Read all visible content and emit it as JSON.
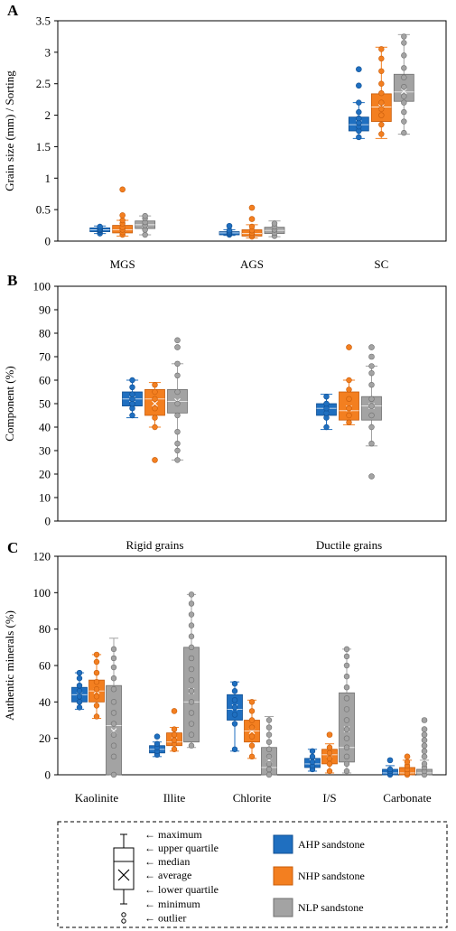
{
  "colors": {
    "ahp": "#1f6fc0",
    "nhp": "#f37f20",
    "nlp": "#a3a3a3",
    "axis": "#000000"
  },
  "legend": {
    "box_labels": [
      "maximum",
      "upper quartile",
      "median",
      "average",
      "lower quartile",
      "minimum",
      "outlier"
    ],
    "series": [
      "AHP sandstone",
      "NHP sandstone",
      "NLP sandstone"
    ]
  },
  "chart_data": [
    {
      "panel": "A",
      "type": "box",
      "ylabel": "Grain size (mm) / Sorting",
      "ylim": [
        0,
        3.5
      ],
      "yticks": [
        "0",
        "0.5",
        "1",
        "1.5",
        "2",
        "2.5",
        "3",
        "3.5"
      ],
      "categories": [
        "MGS",
        "AGS",
        "SC"
      ],
      "series": [
        {
          "name": "AHP sandstone",
          "boxes": [
            {
              "min": 0.12,
              "q1": 0.15,
              "median": 0.18,
              "mean": 0.18,
              "q3": 0.21,
              "max": 0.24,
              "points": [
                0.12,
                0.15,
                0.17,
                0.18,
                0.19,
                0.21,
                0.23
              ],
              "outliers": []
            },
            {
              "min": 0.09,
              "q1": 0.1,
              "median": 0.13,
              "mean": 0.13,
              "q3": 0.15,
              "max": 0.18,
              "points": [
                0.1,
                0.12,
                0.13,
                0.15,
                0.17
              ],
              "outliers": [
                0.24
              ]
            },
            {
              "min": 1.63,
              "q1": 1.75,
              "median": 1.85,
              "mean": 1.87,
              "q3": 1.97,
              "max": 2.2,
              "points": [
                1.65,
                1.75,
                1.82,
                1.88,
                1.95,
                2.05,
                2.2
              ],
              "outliers": [
                2.47,
                2.73
              ]
            }
          ]
        },
        {
          "name": "NHP sandstone",
          "boxes": [
            {
              "min": 0.08,
              "q1": 0.13,
              "median": 0.18,
              "mean": 0.19,
              "q3": 0.25,
              "max": 0.33,
              "points": [
                0.1,
                0.14,
                0.18,
                0.22,
                0.28,
                0.33
              ],
              "outliers": [
                0.41,
                0.82
              ]
            },
            {
              "min": 0.05,
              "q1": 0.08,
              "median": 0.12,
              "mean": 0.13,
              "q3": 0.18,
              "max": 0.26,
              "points": [
                0.07,
                0.1,
                0.13,
                0.17,
                0.23
              ],
              "outliers": [
                0.35,
                0.53
              ]
            },
            {
              "min": 1.63,
              "q1": 1.9,
              "median": 2.13,
              "mean": 2.13,
              "q3": 2.34,
              "max": 3.08,
              "points": [
                1.7,
                1.85,
                2.0,
                2.1,
                2.2,
                2.35,
                2.5,
                2.7,
                2.9,
                3.05
              ],
              "outliers": []
            }
          ]
        },
        {
          "name": "NLP sandstone",
          "boxes": [
            {
              "min": 0.1,
              "q1": 0.2,
              "median": 0.26,
              "mean": 0.26,
              "q3": 0.32,
              "max": 0.4,
              "points": [
                0.1,
                0.18,
                0.25,
                0.3,
                0.36,
                0.4
              ],
              "outliers": []
            },
            {
              "min": 0.07,
              "q1": 0.12,
              "median": 0.17,
              "mean": 0.17,
              "q3": 0.22,
              "max": 0.32,
              "points": [
                0.08,
                0.13,
                0.18,
                0.23,
                0.28
              ],
              "outliers": []
            },
            {
              "min": 1.7,
              "q1": 2.22,
              "median": 2.37,
              "mean": 2.38,
              "q3": 2.65,
              "max": 3.28,
              "points": [
                1.72,
                1.9,
                2.05,
                2.2,
                2.3,
                2.45,
                2.6,
                2.75,
                2.95,
                3.15,
                3.25
              ],
              "outliers": []
            }
          ]
        }
      ]
    },
    {
      "panel": "B",
      "type": "box",
      "ylabel": "Component (%)",
      "ylim": [
        0,
        100
      ],
      "yticks": [
        "0",
        "10",
        "20",
        "30",
        "40",
        "50",
        "60",
        "70",
        "80",
        "90",
        "100"
      ],
      "categories": [
        "Rigid grains",
        "Ductile grains"
      ],
      "series": [
        {
          "name": "AHP sandstone",
          "boxes": [
            {
              "min": 44,
              "q1": 49,
              "median": 52,
              "mean": 52,
              "q3": 55,
              "max": 60,
              "points": [
                45,
                48,
                50,
                52,
                54,
                57,
                60
              ],
              "outliers": []
            },
            {
              "min": 39,
              "q1": 45,
              "median": 48,
              "mean": 47,
              "q3": 50,
              "max": 54,
              "points": [
                40,
                44,
                46,
                48,
                50,
                53
              ],
              "outliers": []
            }
          ]
        },
        {
          "name": "NHP sandstone",
          "boxes": [
            {
              "min": 40,
              "q1": 45,
              "median": 52,
              "mean": 50,
              "q3": 56,
              "max": 59,
              "points": [
                40,
                44,
                48,
                52,
                55,
                58
              ],
              "outliers": [
                26
              ]
            },
            {
              "min": 41,
              "q1": 43,
              "median": 47,
              "mean": 48,
              "q3": 55,
              "max": 60,
              "points": [
                42,
                45,
                48,
                52,
                56,
                60
              ],
              "outliers": [
                74
              ]
            }
          ]
        },
        {
          "name": "NLP sandstone",
          "boxes": [
            {
              "min": 26,
              "q1": 46,
              "median": 51,
              "mean": 51,
              "q3": 56,
              "max": 67,
              "points": [
                26,
                30,
                33,
                38,
                45,
                50,
                55,
                62,
                67
              ],
              "outliers": [
                74,
                77
              ]
            },
            {
              "min": 32,
              "q1": 43,
              "median": 49,
              "mean": 49,
              "q3": 53,
              "max": 66,
              "points": [
                33,
                40,
                45,
                49,
                52,
                58,
                63,
                66
              ],
              "outliers": [
                19,
                70,
                74
              ]
            }
          ]
        }
      ]
    },
    {
      "panel": "C",
      "type": "box",
      "ylabel": "Authentic minerals (%)",
      "ylim": [
        0,
        120
      ],
      "yticks": [
        "0",
        "20",
        "40",
        "60",
        "80",
        "100",
        "120"
      ],
      "categories": [
        "Kaolinite",
        "Illite",
        "Chlorite",
        "I/S",
        "Carbonate"
      ],
      "series": [
        {
          "name": "AHP sandstone",
          "boxes": [
            {
              "min": 36,
              "q1": 40,
              "median": 44,
              "mean": 44,
              "q3": 48,
              "max": 56,
              "points": [
                37,
                40,
                43,
                46,
                49,
                53,
                56
              ],
              "outliers": []
            },
            {
              "min": 10,
              "q1": 12,
              "median": 14,
              "mean": 14,
              "q3": 16,
              "max": 18,
              "points": [
                11,
                13,
                15,
                17
              ],
              "outliers": [
                21
              ]
            },
            {
              "min": 13,
              "q1": 30,
              "median": 36,
              "mean": 37,
              "q3": 44,
              "max": 51,
              "points": [
                14,
                28,
                33,
                37,
                41,
                46,
                50
              ],
              "outliers": []
            },
            {
              "min": 2,
              "q1": 4,
              "median": 6,
              "mean": 7,
              "q3": 9,
              "max": 14,
              "points": [
                3,
                5,
                7,
                10,
                13
              ],
              "outliers": []
            },
            {
              "min": 0,
              "q1": 0,
              "median": 1,
              "mean": 2,
              "q3": 3,
              "max": 5,
              "points": [
                0,
                1,
                2,
                3
              ],
              "outliers": [
                8
              ]
            }
          ]
        },
        {
          "name": "NHP sandstone",
          "boxes": [
            {
              "min": 31,
              "q1": 40,
              "median": 46,
              "mean": 46,
              "q3": 52,
              "max": 66,
              "points": [
                32,
                38,
                43,
                47,
                51,
                56,
                62,
                66
              ],
              "outliers": []
            },
            {
              "min": 13,
              "q1": 16,
              "median": 18,
              "mean": 19,
              "q3": 23,
              "max": 26,
              "points": [
                14,
                17,
                19,
                22,
                25
              ],
              "outliers": [
                35
              ]
            },
            {
              "min": 9,
              "q1": 18,
              "median": 24,
              "mean": 24,
              "q3": 30,
              "max": 41,
              "points": [
                10,
                16,
                21,
                26,
                30,
                35,
                40
              ],
              "outliers": []
            },
            {
              "min": 1,
              "q1": 6,
              "median": 11,
              "mean": 11,
              "q3": 14,
              "max": 17,
              "points": [
                2,
                6,
                9,
                12,
                15
              ],
              "outliers": [
                22
              ]
            },
            {
              "min": 0,
              "q1": 0,
              "median": 1,
              "mean": 2,
              "q3": 4,
              "max": 8,
              "points": [
                0,
                1,
                3,
                5,
                7
              ],
              "outliers": [
                10
              ]
            }
          ]
        },
        {
          "name": "NLP sandstone",
          "boxes": [
            {
              "min": 0,
              "q1": 0,
              "median": 27,
              "mean": 24,
              "q3": 49,
              "max": 75,
              "points": [
                0,
                10,
                16,
                22,
                28,
                34,
                40,
                47,
                53,
                59,
                64,
                69
              ],
              "outliers": []
            },
            {
              "min": 15,
              "q1": 18,
              "median": 40,
              "mean": 46,
              "q3": 70,
              "max": 99,
              "points": [
                16,
                22,
                28,
                34,
                40,
                46,
                52,
                58,
                64,
                70,
                76,
                82,
                88,
                94,
                99
              ],
              "outliers": []
            },
            {
              "min": 0,
              "q1": 0,
              "median": 4,
              "mean": 8,
              "q3": 15,
              "max": 32,
              "points": [
                0,
                3,
                6,
                10,
                14,
                18,
                22,
                26,
                30
              ],
              "outliers": []
            },
            {
              "min": 1,
              "q1": 7,
              "median": 15,
              "mean": 25,
              "q3": 45,
              "max": 69,
              "points": [
                2,
                6,
                10,
                15,
                20,
                25,
                30,
                36,
                42,
                48,
                54,
                60,
                65,
                69
              ],
              "outliers": []
            },
            {
              "min": 0,
              "q1": 0,
              "median": 1,
              "mean": 2,
              "q3": 3,
              "max": 8,
              "points": [
                0,
                2,
                4,
                6
              ],
              "outliers": [
                10,
                13,
                16,
                19,
                22,
                25,
                30
              ]
            }
          ]
        }
      ]
    }
  ]
}
